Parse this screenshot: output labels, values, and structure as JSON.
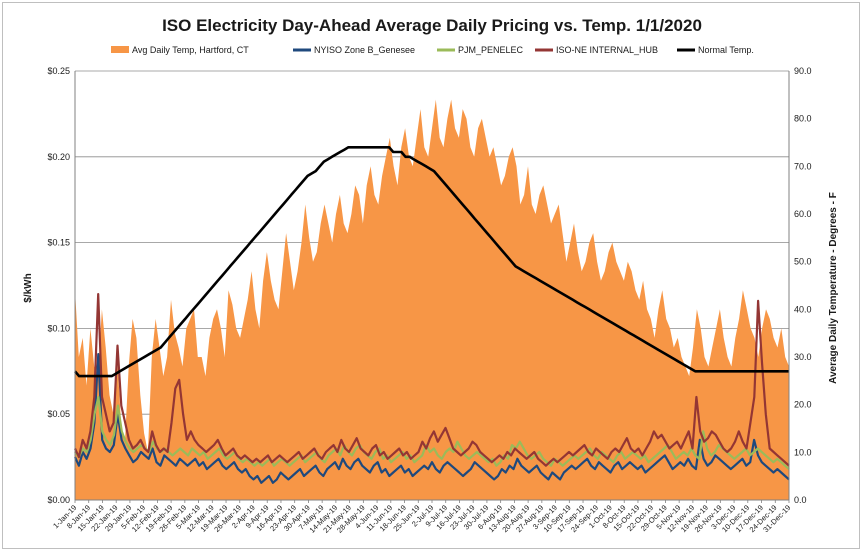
{
  "chart_data": {
    "type": "area+line",
    "title": "ISO Electricity Day-Ahead Average Daily Pricing vs. Temp. 1/1/2020",
    "ylabel": "$/kWh",
    "y2label": "Average Daily Temperature - Degrees - F",
    "ylim": [
      0,
      0.25
    ],
    "y2lim": [
      0,
      90
    ],
    "yticks": [
      "$0.00",
      "$0.05",
      "$0.10",
      "$0.15",
      "$0.20",
      "$0.25"
    ],
    "y2ticks": [
      "0.0",
      "10.0",
      "20.0",
      "30.0",
      "40.0",
      "50.0",
      "60.0",
      "70.0",
      "80.0",
      "90.0"
    ],
    "grid": "horizontal",
    "legend_position": "top",
    "x_tick_labels": [
      "1-Jan-19",
      "8-Jan-19",
      "15-Jan-19",
      "22-Jan-19",
      "29-Jan-19",
      "5-Feb-19",
      "12-Feb-19",
      "19-Feb-19",
      "26-Feb-19",
      "5-Mar-19",
      "12-Mar-19",
      "19-Mar-19",
      "26-Mar-19",
      "2-Apr-19",
      "9-Apr-19",
      "16-Apr-19",
      "23-Apr-19",
      "30-Apr-19",
      "7-May-19",
      "14-May-19",
      "21-May-19",
      "28-May-19",
      "4-Jun-19",
      "11-Jun-19",
      "18-Jun-19",
      "25-Jun-19",
      "2-Jul-19",
      "9-Jul-19",
      "16-Jul-19",
      "23-Jul-19",
      "30-Jul-19",
      "6-Aug-19",
      "13-Aug-19",
      "20-Aug-19",
      "27-Aug-19",
      "3-Sep-19",
      "10-Sep-19",
      "17-Sep-19",
      "24-Sep-19",
      "1-Oct-19",
      "8-Oct-19",
      "15-Oct-19",
      "22-Oct-19",
      "29-Oct-19",
      "5-Nov-19",
      "12-Nov-19",
      "19-Nov-19",
      "26-Nov-19",
      "3-Dec-19",
      "10-Dec-19",
      "17-Dec-19",
      "24-Dec-19",
      "31-Dec-19"
    ],
    "series": [
      {
        "name": "Avg Daily Temp, Hartford, CT",
        "kind": "area",
        "axis": "right",
        "color": "#f79646",
        "values": [
          44,
          30,
          34,
          24,
          36,
          28,
          26,
          40,
          32,
          22,
          18,
          30,
          16,
          12,
          28,
          38,
          34,
          22,
          14,
          10,
          30,
          38,
          32,
          26,
          30,
          42,
          35,
          32,
          28,
          36,
          38,
          40,
          30,
          30,
          26,
          34,
          38,
          40,
          36,
          30,
          44,
          41,
          36,
          34,
          38,
          42,
          48,
          40,
          36,
          46,
          52,
          46,
          42,
          40,
          48,
          56,
          50,
          44,
          48,
          54,
          62,
          55,
          50,
          52,
          58,
          62,
          58,
          54,
          60,
          64,
          58,
          56,
          60,
          66,
          64,
          58,
          66,
          70,
          64,
          62,
          68,
          72,
          76,
          70,
          66,
          74,
          78,
          72,
          70,
          76,
          82,
          74,
          72,
          78,
          84,
          76,
          74,
          80,
          84,
          78,
          76,
          82,
          80,
          74,
          72,
          78,
          80,
          76,
          72,
          74,
          70,
          66,
          68,
          72,
          74,
          70,
          62,
          64,
          70,
          62,
          60,
          64,
          66,
          62,
          58,
          60,
          62,
          56,
          50,
          54,
          58,
          52,
          48,
          50,
          54,
          56,
          50,
          46,
          48,
          52,
          54,
          50,
          48,
          46,
          50,
          48,
          44,
          42,
          46,
          40,
          38,
          34,
          40,
          44,
          38,
          36,
          32,
          34,
          30,
          28,
          26,
          32,
          40,
          36,
          30,
          28,
          32,
          36,
          40,
          34,
          30,
          28,
          34,
          38,
          44,
          40,
          36,
          34,
          30,
          36,
          40,
          38,
          34,
          32,
          36,
          30,
          28
        ]
      },
      {
        "name": "NYISO Zone B_Genesee",
        "kind": "line",
        "axis": "left",
        "color": "#1f497d",
        "values": [
          0.025,
          0.02,
          0.028,
          0.024,
          0.03,
          0.045,
          0.085,
          0.035,
          0.03,
          0.028,
          0.032,
          0.05,
          0.035,
          0.03,
          0.026,
          0.022,
          0.024,
          0.028,
          0.026,
          0.024,
          0.03,
          0.022,
          0.02,
          0.026,
          0.024,
          0.022,
          0.02,
          0.024,
          0.022,
          0.02,
          0.022,
          0.024,
          0.02,
          0.022,
          0.018,
          0.02,
          0.022,
          0.024,
          0.02,
          0.018,
          0.02,
          0.022,
          0.018,
          0.016,
          0.018,
          0.014,
          0.012,
          0.014,
          0.01,
          0.012,
          0.014,
          0.01,
          0.012,
          0.016,
          0.014,
          0.012,
          0.014,
          0.016,
          0.018,
          0.014,
          0.016,
          0.018,
          0.02,
          0.016,
          0.014,
          0.018,
          0.02,
          0.022,
          0.018,
          0.024,
          0.02,
          0.018,
          0.022,
          0.024,
          0.02,
          0.018,
          0.016,
          0.02,
          0.022,
          0.016,
          0.018,
          0.014,
          0.016,
          0.018,
          0.02,
          0.016,
          0.018,
          0.014,
          0.016,
          0.018,
          0.02,
          0.018,
          0.022,
          0.018,
          0.016,
          0.02,
          0.022,
          0.02,
          0.018,
          0.016,
          0.014,
          0.016,
          0.018,
          0.022,
          0.02,
          0.018,
          0.016,
          0.014,
          0.012,
          0.014,
          0.018,
          0.016,
          0.02,
          0.018,
          0.024,
          0.02,
          0.018,
          0.016,
          0.018,
          0.02,
          0.016,
          0.014,
          0.012,
          0.016,
          0.014,
          0.012,
          0.016,
          0.018,
          0.02,
          0.018,
          0.02,
          0.022,
          0.024,
          0.02,
          0.018,
          0.022,
          0.02,
          0.018,
          0.016,
          0.02,
          0.022,
          0.018,
          0.02,
          0.022,
          0.02,
          0.018,
          0.02,
          0.016,
          0.018,
          0.02,
          0.022,
          0.024,
          0.026,
          0.022,
          0.018,
          0.02,
          0.022,
          0.02,
          0.024,
          0.02,
          0.018,
          0.035,
          0.024,
          0.02,
          0.022,
          0.026,
          0.024,
          0.022,
          0.02,
          0.018,
          0.02,
          0.022,
          0.024,
          0.02,
          0.022,
          0.035,
          0.026,
          0.022,
          0.02,
          0.018,
          0.016,
          0.018,
          0.016,
          0.014,
          0.012
        ]
      },
      {
        "name": "PJM_PENELEC",
        "kind": "line",
        "axis": "left",
        "color": "#9bbb59",
        "values": [
          0.028,
          0.025,
          0.03,
          0.028,
          0.035,
          0.05,
          0.06,
          0.04,
          0.035,
          0.032,
          0.038,
          0.055,
          0.04,
          0.034,
          0.03,
          0.028,
          0.03,
          0.032,
          0.03,
          0.028,
          0.034,
          0.03,
          0.028,
          0.03,
          0.028,
          0.026,
          0.028,
          0.03,
          0.028,
          0.026,
          0.03,
          0.028,
          0.026,
          0.028,
          0.024,
          0.026,
          0.028,
          0.03,
          0.026,
          0.024,
          0.026,
          0.028,
          0.024,
          0.022,
          0.024,
          0.022,
          0.02,
          0.022,
          0.02,
          0.022,
          0.024,
          0.02,
          0.022,
          0.024,
          0.022,
          0.02,
          0.022,
          0.024,
          0.026,
          0.022,
          0.024,
          0.026,
          0.028,
          0.024,
          0.022,
          0.026,
          0.028,
          0.03,
          0.026,
          0.032,
          0.028,
          0.026,
          0.03,
          0.032,
          0.028,
          0.026,
          0.024,
          0.028,
          0.03,
          0.024,
          0.026,
          0.022,
          0.024,
          0.026,
          0.028,
          0.024,
          0.026,
          0.022,
          0.024,
          0.026,
          0.032,
          0.028,
          0.03,
          0.026,
          0.024,
          0.028,
          0.03,
          0.028,
          0.034,
          0.03,
          0.026,
          0.024,
          0.026,
          0.028,
          0.026,
          0.024,
          0.022,
          0.024,
          0.02,
          0.022,
          0.026,
          0.024,
          0.032,
          0.03,
          0.034,
          0.03,
          0.026,
          0.024,
          0.026,
          0.028,
          0.024,
          0.022,
          0.02,
          0.024,
          0.022,
          0.02,
          0.022,
          0.024,
          0.026,
          0.024,
          0.026,
          0.028,
          0.03,
          0.026,
          0.024,
          0.028,
          0.026,
          0.024,
          0.022,
          0.026,
          0.028,
          0.024,
          0.026,
          0.028,
          0.026,
          0.024,
          0.026,
          0.022,
          0.024,
          0.026,
          0.028,
          0.03,
          0.032,
          0.028,
          0.024,
          0.026,
          0.028,
          0.026,
          0.03,
          0.026,
          0.024,
          0.04,
          0.03,
          0.026,
          0.028,
          0.032,
          0.03,
          0.028,
          0.026,
          0.024,
          0.026,
          0.028,
          0.03,
          0.026,
          0.028,
          0.03,
          0.028,
          0.026,
          0.024,
          0.022,
          0.024,
          0.022,
          0.02,
          0.018
        ]
      },
      {
        "name": "ISO-NE INTERNAL_HUB",
        "kind": "line",
        "axis": "left",
        "color": "#943634",
        "values": [
          0.03,
          0.025,
          0.035,
          0.03,
          0.04,
          0.06,
          0.12,
          0.06,
          0.05,
          0.04,
          0.045,
          0.09,
          0.055,
          0.045,
          0.035,
          0.03,
          0.032,
          0.035,
          0.03,
          0.028,
          0.04,
          0.032,
          0.028,
          0.03,
          0.028,
          0.045,
          0.065,
          0.07,
          0.05,
          0.035,
          0.04,
          0.035,
          0.032,
          0.03,
          0.028,
          0.03,
          0.032,
          0.035,
          0.03,
          0.026,
          0.028,
          0.03,
          0.026,
          0.024,
          0.026,
          0.024,
          0.022,
          0.024,
          0.022,
          0.024,
          0.026,
          0.022,
          0.024,
          0.026,
          0.024,
          0.022,
          0.024,
          0.026,
          0.028,
          0.024,
          0.026,
          0.028,
          0.03,
          0.026,
          0.024,
          0.028,
          0.03,
          0.032,
          0.028,
          0.035,
          0.03,
          0.028,
          0.032,
          0.036,
          0.03,
          0.028,
          0.026,
          0.03,
          0.032,
          0.026,
          0.028,
          0.024,
          0.026,
          0.028,
          0.03,
          0.026,
          0.028,
          0.024,
          0.026,
          0.028,
          0.034,
          0.03,
          0.036,
          0.04,
          0.034,
          0.038,
          0.042,
          0.036,
          0.03,
          0.028,
          0.026,
          0.028,
          0.03,
          0.034,
          0.032,
          0.028,
          0.026,
          0.024,
          0.022,
          0.024,
          0.026,
          0.024,
          0.028,
          0.026,
          0.03,
          0.028,
          0.026,
          0.024,
          0.026,
          0.028,
          0.024,
          0.022,
          0.02,
          0.022,
          0.024,
          0.022,
          0.024,
          0.026,
          0.028,
          0.026,
          0.028,
          0.03,
          0.032,
          0.028,
          0.026,
          0.03,
          0.028,
          0.026,
          0.024,
          0.028,
          0.03,
          0.028,
          0.032,
          0.036,
          0.03,
          0.028,
          0.03,
          0.026,
          0.03,
          0.034,
          0.04,
          0.036,
          0.038,
          0.034,
          0.03,
          0.032,
          0.034,
          0.03,
          0.035,
          0.04,
          0.03,
          0.06,
          0.04,
          0.034,
          0.036,
          0.04,
          0.038,
          0.034,
          0.03,
          0.028,
          0.03,
          0.034,
          0.04,
          0.034,
          0.03,
          0.045,
          0.06,
          0.116,
          0.08,
          0.05,
          0.03,
          0.028,
          0.026,
          0.024,
          0.022,
          0.02
        ]
      },
      {
        "name": "Normal Temp.",
        "kind": "line",
        "axis": "right",
        "color": "#000000",
        "values": [
          27,
          26,
          26,
          26,
          26,
          26,
          26,
          26,
          26,
          26,
          26.5,
          27,
          27.5,
          28,
          28.5,
          29,
          29.5,
          30,
          30.5,
          31,
          31.5,
          32,
          33,
          34,
          35,
          36,
          37,
          38,
          39,
          40,
          41,
          42,
          43,
          44,
          45,
          46,
          47,
          48,
          49,
          50,
          51,
          52,
          53,
          54,
          55,
          56,
          57,
          58,
          59,
          60,
          61,
          62,
          63,
          64,
          65,
          66,
          67,
          68,
          68.5,
          69,
          70,
          71,
          71.5,
          72,
          72.5,
          73,
          73.5,
          74,
          74,
          74,
          74,
          74,
          74,
          74,
          74,
          74,
          74,
          74,
          73,
          73,
          73,
          72,
          72,
          71.5,
          71,
          70.5,
          70,
          69.5,
          69,
          68,
          67,
          66,
          65,
          64,
          63,
          62,
          61,
          60,
          59,
          58,
          57,
          56,
          55,
          54,
          53,
          52,
          51,
          50,
          49,
          48.5,
          48,
          47.5,
          47,
          46.5,
          46,
          45.5,
          45,
          44.5,
          44,
          43.5,
          43,
          42.5,
          42,
          41.5,
          41,
          40.5,
          40,
          39.5,
          39,
          38.5,
          38,
          37.5,
          37,
          36.5,
          36,
          35.5,
          35,
          34.5,
          34,
          33.5,
          33,
          32.5,
          32,
          31.5,
          31,
          30.5,
          30,
          29.5,
          29,
          28.5,
          28,
          27.5,
          27,
          27,
          27,
          27,
          27,
          27,
          27,
          27,
          27,
          27,
          27,
          27,
          27,
          27,
          27,
          27,
          27,
          27,
          27,
          27,
          27,
          27,
          27,
          27
        ]
      }
    ]
  }
}
